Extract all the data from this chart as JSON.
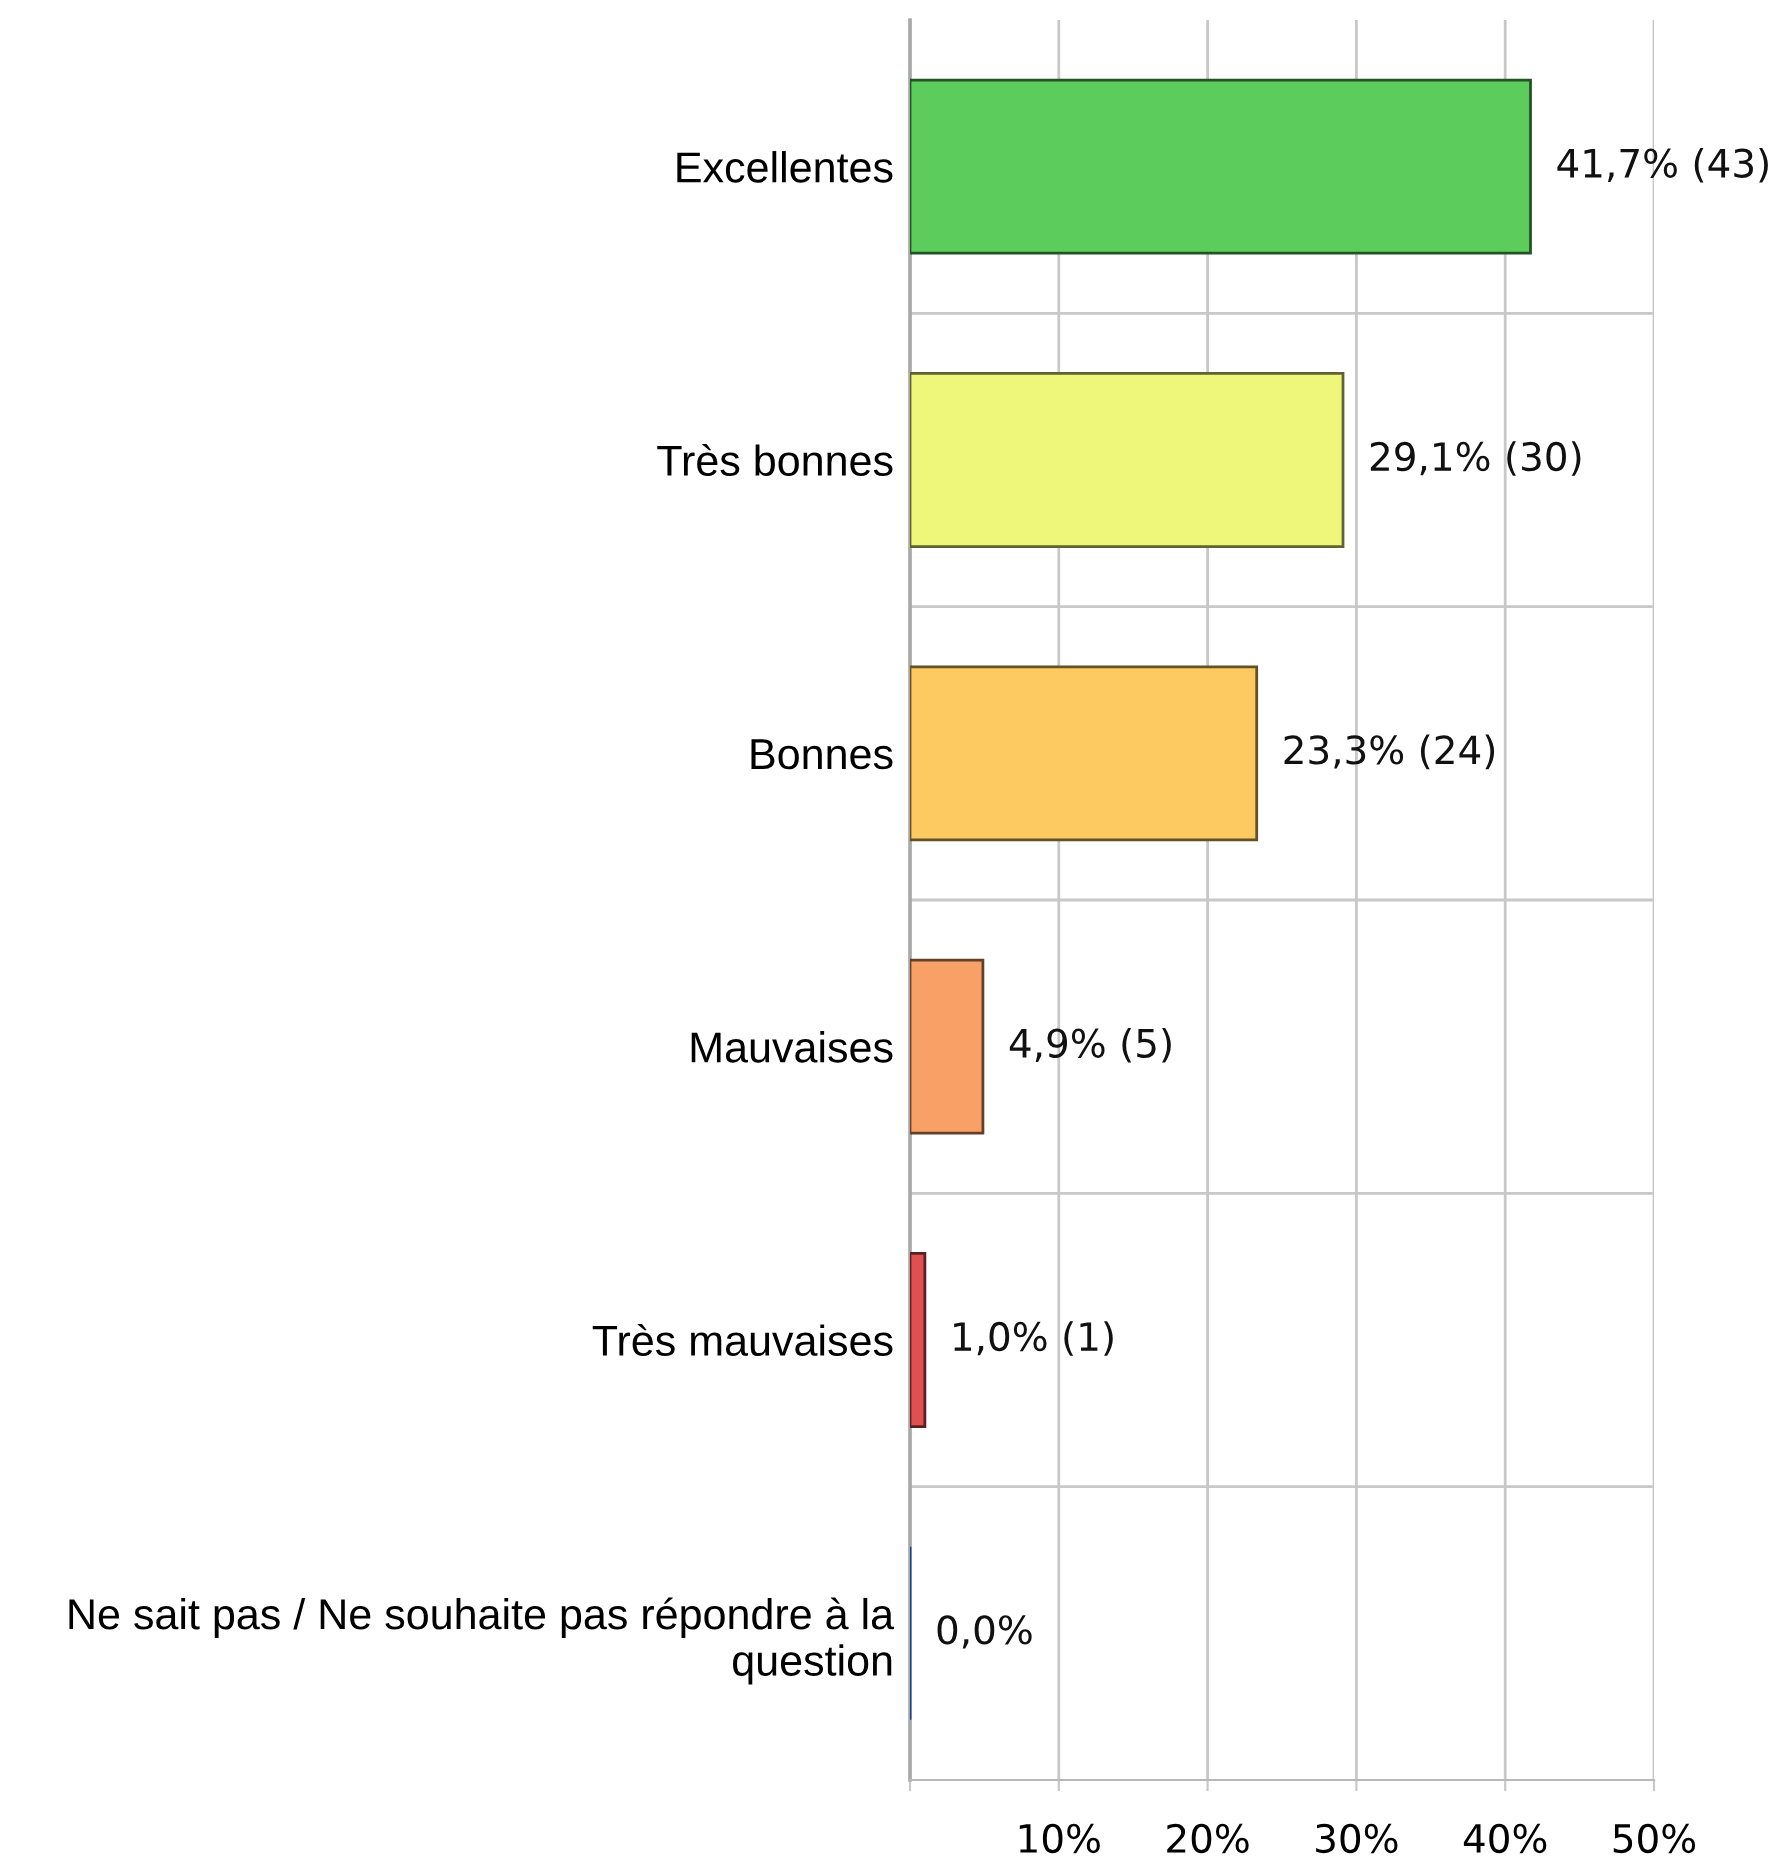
{
  "chart_data": {
    "type": "bar",
    "orientation": "horizontal",
    "categories": [
      "Excellentes",
      "Très bonnes",
      "Bonnes",
      "Mauvaises",
      "Très mauvaises",
      "Ne sait pas / Ne souhaite pas répondre à la question"
    ],
    "values": [
      41.7,
      29.1,
      23.3,
      4.9,
      1.0,
      0.0
    ],
    "value_labels": [
      "41,7% (43)",
      "29,1% (30)",
      "23,3% (24)",
      "4,9% (5)",
      "1,0% (1)",
      "0,0%"
    ],
    "colors": [
      "#5ccc5c",
      "#eff77a",
      "#fcca60",
      "#f8a066",
      "#e05050",
      "#10449a"
    ],
    "xlim": [
      0,
      50
    ],
    "xticks": [
      {
        "value": 0,
        "label": null
      },
      {
        "value": 10,
        "label": "10%"
      },
      {
        "value": 20,
        "label": "20%"
      },
      {
        "value": 30,
        "label": "30%"
      },
      {
        "value": 40,
        "label": "40%"
      },
      {
        "value": 50,
        "label": "50%"
      }
    ],
    "grid": true
  }
}
